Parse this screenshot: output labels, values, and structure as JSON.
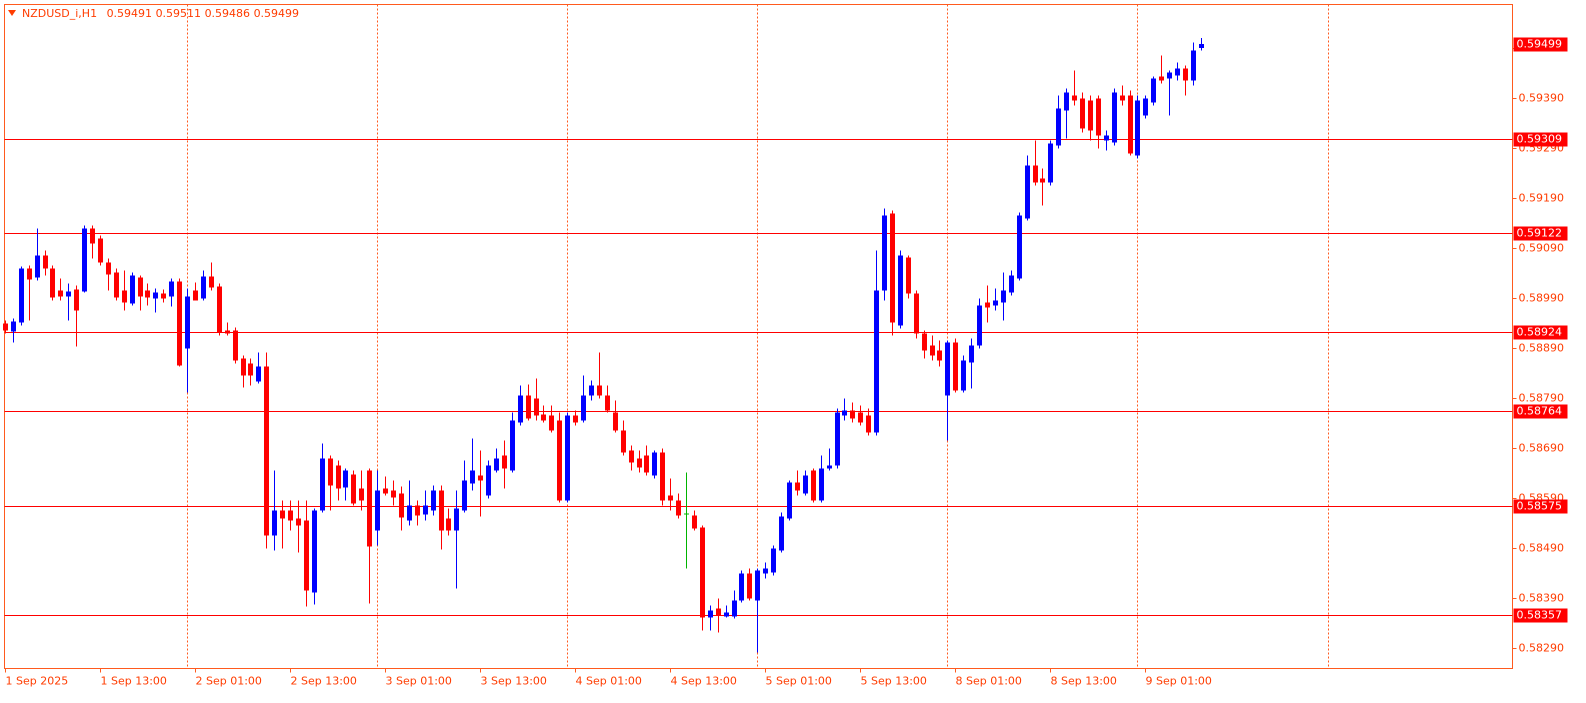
{
  "chart_data": {
    "type": "candlestick",
    "symbol": "NZDUSD_i,H1",
    "up_color": "#0000ff",
    "down_color": "#ff0000",
    "doji_color": "#00b400",
    "level_color": "#ff0000",
    "ylim": [
      0.5825,
      0.59578
    ],
    "yticks": [
      {
        "value": 0.5829,
        "label": "0.58290"
      },
      {
        "value": 0.5839,
        "label": "0.58390"
      },
      {
        "value": 0.5849,
        "label": "0.58490"
      },
      {
        "value": 0.5859,
        "label": "0.58590"
      },
      {
        "value": 0.5869,
        "label": "0.58690"
      },
      {
        "value": 0.5879,
        "label": "0.58790"
      },
      {
        "value": 0.5889,
        "label": "0.58890"
      },
      {
        "value": 0.5899,
        "label": "0.58990"
      },
      {
        "value": 0.5909,
        "label": "0.59090"
      },
      {
        "value": 0.5919,
        "label": "0.59190"
      },
      {
        "value": 0.5929,
        "label": "0.59290"
      },
      {
        "value": 0.5939,
        "label": "0.59390"
      },
      {
        "value": 0.5949,
        "label": "0.59490"
      }
    ],
    "levels": [
      0.59309,
      0.59122,
      0.58924,
      0.58764,
      0.58575,
      0.58357
    ],
    "x": [
      "1 Sep 2025",
      null,
      null,
      null,
      null,
      null,
      null,
      null,
      null,
      null,
      null,
      null,
      "1 Sep 13:00",
      null,
      null,
      null,
      null,
      null,
      null,
      null,
      null,
      null,
      null,
      null,
      "2 Sep 01:00",
      null,
      null,
      null,
      null,
      null,
      null,
      null,
      null,
      null,
      null,
      null,
      "2 Sep 13:00",
      null,
      null,
      null,
      null,
      null,
      null,
      null,
      null,
      null,
      null,
      null,
      "3 Sep 01:00",
      null,
      null,
      null,
      null,
      null,
      null,
      null,
      null,
      null,
      null,
      null,
      "3 Sep 13:00",
      null,
      null,
      null,
      null,
      null,
      null,
      null,
      null,
      null,
      null,
      null,
      "4 Sep 01:00",
      null,
      null,
      null,
      null,
      null,
      null,
      null,
      null,
      null,
      null,
      null,
      "4 Sep 13:00",
      null,
      null,
      null,
      null,
      null,
      null,
      null,
      null,
      null,
      null,
      null,
      "5 Sep 01:00",
      null,
      null,
      null,
      null,
      null,
      null,
      null,
      null,
      null,
      null,
      null,
      "5 Sep 13:00",
      null,
      null,
      null,
      null,
      null,
      null,
      null,
      null,
      null,
      null,
      null,
      "8 Sep 01:00",
      null,
      null,
      null,
      null,
      null,
      null,
      null,
      null,
      null,
      null,
      null,
      "8 Sep 13:00",
      null,
      null,
      null,
      null,
      null,
      null,
      null,
      null,
      null,
      null,
      null,
      "9 Sep 01:00",
      null,
      null,
      null,
      null,
      null,
      null,
      null
    ],
    "open": [
      0.5894,
      0.58924,
      0.58942,
      0.5905,
      0.59032,
      0.59076,
      0.5905,
      0.59006,
      0.58994,
      0.59008,
      0.59004,
      0.5913,
      0.5911,
      0.59062,
      0.59042,
      0.59006,
      0.5898,
      0.59032,
      0.59006,
      0.5899,
      0.59,
      0.58994,
      0.59024,
      0.5889,
      0.59006,
      0.5899,
      0.59034,
      0.59014,
      0.58926,
      0.58926,
      0.5887,
      0.5886,
      0.58824,
      0.58854,
      0.58516,
      0.58566,
      0.58566,
      0.5855,
      0.58546,
      0.58402,
      0.58566,
      0.5867,
      0.58656,
      0.58612,
      0.58638,
      0.5861,
      0.58646,
      0.58526,
      0.5861,
      0.58606,
      0.586,
      0.58546,
      0.58576,
      0.58558,
      0.58566,
      0.58606,
      0.5855,
      0.58526,
      0.58566,
      0.5862,
      0.58636,
      0.58596,
      0.58646,
      0.58676,
      0.58646,
      0.58742,
      0.58796,
      0.5879,
      0.58758,
      0.58756,
      0.58746,
      0.58586,
      0.58756,
      0.58746,
      0.58796,
      0.58816,
      0.58796,
      0.58762,
      0.58726,
      0.58686,
      0.5867,
      0.58676,
      0.58636,
      0.58682,
      0.58596,
      0.58586,
      0.5856,
      0.58556,
      0.58532,
      0.58352,
      0.5837,
      0.58354,
      0.58354,
      0.58386,
      0.5844,
      0.58386,
      0.5844,
      0.58442,
      0.58486,
      0.5855,
      0.58622,
      0.586,
      0.58646,
      0.58586,
      0.5865,
      0.58656,
      0.58756,
      0.58766,
      0.58762,
      0.58756,
      0.58722,
      0.59006,
      0.5916,
      0.58936,
      0.59072,
      0.59,
      0.5892,
      0.58896,
      0.58886,
      0.58796,
      0.58902,
      0.58806,
      0.58862,
      0.58896,
      0.58982,
      0.58976,
      0.58982,
      0.59002,
      0.5903,
      0.5915,
      0.59256,
      0.5923,
      0.59222,
      0.59296,
      0.59366,
      0.59396,
      0.5939,
      0.59386,
      0.5939,
      0.59306,
      0.59302,
      0.59396,
      0.59396,
      0.59276,
      0.59356,
      0.59382,
      0.59434,
      0.5943,
      0.59436,
      0.5945,
      0.59426,
      0.59491
    ],
    "high": [
      0.58946,
      0.5895,
      0.59054,
      0.59056,
      0.5913,
      0.59086,
      0.59056,
      0.5903,
      0.5902,
      0.59016,
      0.59136,
      0.59136,
      0.59116,
      0.5907,
      0.5905,
      0.59046,
      0.59042,
      0.59036,
      0.5902,
      0.5901,
      0.59008,
      0.5903,
      0.5903,
      0.5901,
      0.59022,
      0.59046,
      0.59062,
      0.5902,
      0.58942,
      0.58932,
      0.58876,
      0.5887,
      0.58882,
      0.58882,
      0.58646,
      0.58586,
      0.58586,
      0.58586,
      0.58586,
      0.5857,
      0.587,
      0.58676,
      0.58666,
      0.5865,
      0.58646,
      0.58646,
      0.5865,
      0.58646,
      0.58634,
      0.58626,
      0.58614,
      0.58626,
      0.58586,
      0.58606,
      0.58616,
      0.58616,
      0.5857,
      0.58606,
      0.58666,
      0.5871,
      0.58686,
      0.58666,
      0.5869,
      0.58706,
      0.58762,
      0.58816,
      0.58818,
      0.5883,
      0.58776,
      0.58776,
      0.58762,
      0.58762,
      0.58766,
      0.58836,
      0.58826,
      0.58882,
      0.58816,
      0.58786,
      0.58746,
      0.58696,
      0.58686,
      0.58696,
      0.58686,
      0.5869,
      0.5863,
      0.586,
      0.58642,
      0.58566,
      0.58536,
      0.58376,
      0.5839,
      0.58376,
      0.58406,
      0.58446,
      0.5845,
      0.5845,
      0.58462,
      0.58496,
      0.58562,
      0.58626,
      0.58646,
      0.58646,
      0.5865,
      0.58676,
      0.5869,
      0.5877,
      0.5879,
      0.58782,
      0.58776,
      0.5877,
      0.59086,
      0.5917,
      0.59166,
      0.59086,
      0.59076,
      0.59006,
      0.58926,
      0.58916,
      0.58906,
      0.58906,
      0.5891,
      0.58876,
      0.5891,
      0.5899,
      0.59016,
      0.5901,
      0.59042,
      0.59046,
      0.59162,
      0.59276,
      0.59306,
      0.5925,
      0.59306,
      0.59396,
      0.5941,
      0.59446,
      0.59402,
      0.59396,
      0.59396,
      0.59326,
      0.5941,
      0.59416,
      0.59406,
      0.59396,
      0.59396,
      0.59434,
      0.59476,
      0.59446,
      0.59462,
      0.59456,
      0.59502,
      0.59511
    ],
    "low": [
      0.5892,
      0.58902,
      0.58936,
      0.58946,
      0.59026,
      0.59036,
      0.58986,
      0.58986,
      0.58946,
      0.58894,
      0.59002,
      0.5907,
      0.59056,
      0.59006,
      0.58986,
      0.58966,
      0.58976,
      0.58966,
      0.58976,
      0.58962,
      0.58982,
      0.58974,
      0.58854,
      0.58802,
      0.58986,
      0.58986,
      0.59006,
      0.58916,
      0.58916,
      0.5886,
      0.58812,
      0.58816,
      0.5882,
      0.5849,
      0.58486,
      0.5849,
      0.58526,
      0.58482,
      0.58374,
      0.58378,
      0.58562,
      0.58566,
      0.58586,
      0.58586,
      0.58576,
      0.58566,
      0.5838,
      0.58496,
      0.58596,
      0.58576,
      0.58526,
      0.58536,
      0.58536,
      0.58546,
      0.58556,
      0.58488,
      0.58516,
      0.5841,
      0.58562,
      0.58606,
      0.58554,
      0.5859,
      0.58642,
      0.5861,
      0.58642,
      0.58736,
      0.58746,
      0.58746,
      0.58742,
      0.58722,
      0.58582,
      0.58582,
      0.58736,
      0.58742,
      0.58786,
      0.5879,
      0.58762,
      0.58722,
      0.58676,
      0.58646,
      0.58642,
      0.58636,
      0.5863,
      0.58576,
      0.58566,
      0.5855,
      0.5845,
      0.58526,
      0.58326,
      0.58326,
      0.58322,
      0.58352,
      0.5835,
      0.58382,
      0.58386,
      0.58282,
      0.5843,
      0.58436,
      0.58482,
      0.58546,
      0.58596,
      0.58596,
      0.58582,
      0.58582,
      0.58646,
      0.5865,
      0.58746,
      0.58742,
      0.58736,
      0.58716,
      0.58716,
      0.58986,
      0.58916,
      0.5893,
      0.5899,
      0.5891,
      0.5887,
      0.58866,
      0.58854,
      0.58706,
      0.58802,
      0.58802,
      0.5881,
      0.5889,
      0.58942,
      0.58966,
      0.58946,
      0.58996,
      0.59026,
      0.59146,
      0.59216,
      0.59176,
      0.59216,
      0.5929,
      0.5931,
      0.59376,
      0.59322,
      0.59306,
      0.5929,
      0.59286,
      0.59296,
      0.59376,
      0.59276,
      0.5927,
      0.5935,
      0.59376,
      0.5942,
      0.59356,
      0.59426,
      0.59396,
      0.59416,
      0.59486
    ],
    "close": [
      0.58926,
      0.58944,
      0.5905,
      0.59028,
      0.59076,
      0.5905,
      0.58992,
      0.58994,
      0.59004,
      0.58966,
      0.5913,
      0.591,
      0.59062,
      0.59038,
      0.58992,
      0.58982,
      0.59036,
      0.58994,
      0.58992,
      0.59002,
      0.5899,
      0.59024,
      0.58856,
      0.58994,
      0.58986,
      0.59034,
      0.59012,
      0.58922,
      0.5892,
      0.58866,
      0.58836,
      0.58836,
      0.58854,
      0.58516,
      0.58566,
      0.5855,
      0.58546,
      0.58536,
      0.58406,
      0.58566,
      0.5867,
      0.58616,
      0.5861,
      0.58646,
      0.5858,
      0.58586,
      0.58494,
      0.58606,
      0.586,
      0.58592,
      0.58552,
      0.58576,
      0.58556,
      0.58576,
      0.58606,
      0.58526,
      0.58526,
      0.5857,
      0.58626,
      0.58646,
      0.58626,
      0.58656,
      0.5867,
      0.5865,
      0.58746,
      0.58796,
      0.5875,
      0.58756,
      0.58746,
      0.58726,
      0.58586,
      0.58756,
      0.58742,
      0.58796,
      0.58816,
      0.58796,
      0.58766,
      0.58726,
      0.58682,
      0.58662,
      0.58652,
      0.58642,
      0.58682,
      0.58586,
      0.58586,
      0.58556,
      0.5856,
      0.5853,
      0.58352,
      0.58366,
      0.58356,
      0.58362,
      0.58386,
      0.5844,
      0.5839,
      0.58446,
      0.5845,
      0.5849,
      0.58554,
      0.58622,
      0.58606,
      0.58636,
      0.58586,
      0.5865,
      0.58656,
      0.58762,
      0.58766,
      0.5875,
      0.58742,
      0.58722,
      0.59006,
      0.59156,
      0.58942,
      0.59076,
      0.59,
      0.5892,
      0.58886,
      0.58876,
      0.58866,
      0.58902,
      0.58806,
      0.58866,
      0.58896,
      0.58976,
      0.58972,
      0.58986,
      0.59006,
      0.59036,
      0.59156,
      0.59256,
      0.59222,
      0.59222,
      0.593,
      0.5937,
      0.59402,
      0.59386,
      0.5933,
      0.59326,
      0.59316,
      0.59316,
      0.59402,
      0.59386,
      0.5928,
      0.59386,
      0.5939,
      0.5943,
      0.59426,
      0.59442,
      0.5945,
      0.59426,
      0.59486,
      0.59499
    ]
  }
}
